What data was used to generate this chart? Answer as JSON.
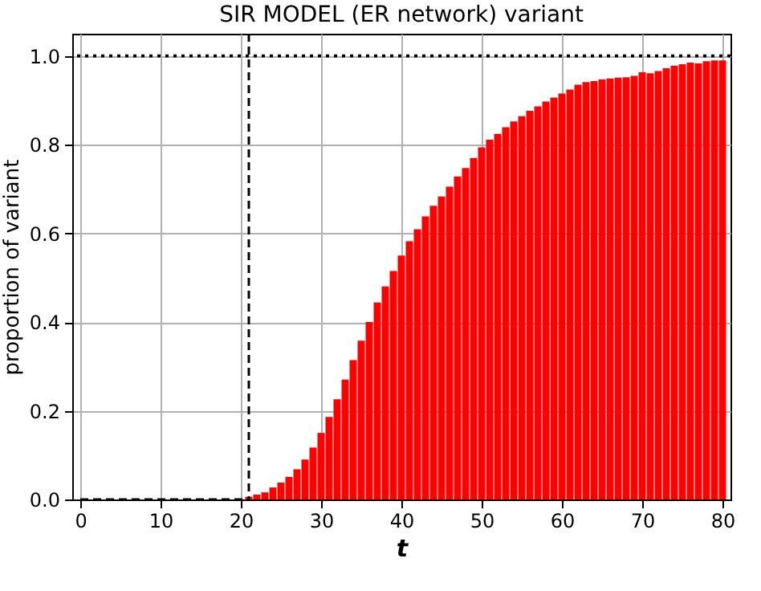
{
  "chart_data": {
    "type": "bar",
    "title": "SIR MODEL (ER network) variant",
    "xlabel": "t",
    "ylabel": "proportion of variant",
    "series": [
      {
        "color": "#ff0000",
        "x": [
          21,
          22,
          23,
          24,
          25,
          26,
          27,
          28,
          29,
          30,
          31,
          32,
          33,
          34,
          35,
          36,
          37,
          38,
          39,
          40,
          41,
          42,
          43,
          44,
          45,
          46,
          47,
          48,
          49,
          50,
          51,
          52,
          53,
          54,
          55,
          56,
          57,
          58,
          59,
          60,
          61,
          62,
          63,
          64,
          65,
          66,
          67,
          68,
          69,
          70,
          71,
          72,
          73,
          74,
          75,
          76,
          77,
          78,
          79,
          80
        ],
        "values": [
          0.006,
          0.011,
          0.016,
          0.027,
          0.038,
          0.051,
          0.068,
          0.09,
          0.117,
          0.15,
          0.186,
          0.226,
          0.27,
          0.314,
          0.358,
          0.4,
          0.444,
          0.48,
          0.515,
          0.55,
          0.582,
          0.609,
          0.638,
          0.662,
          0.683,
          0.705,
          0.728,
          0.747,
          0.77,
          0.794,
          0.811,
          0.824,
          0.839,
          0.852,
          0.864,
          0.876,
          0.886,
          0.897,
          0.906,
          0.915,
          0.924,
          0.935,
          0.941,
          0.943,
          0.947,
          0.949,
          0.951,
          0.952,
          0.955,
          0.963,
          0.961,
          0.966,
          0.972,
          0.978,
          0.981,
          0.985,
          0.983,
          0.988,
          0.99,
          0.99
        ]
      },
      {
        "type": "line",
        "color": "#000000",
        "line_style": "dashed",
        "x": [
          0,
          21
        ],
        "values": [
          0,
          0
        ]
      }
    ],
    "ref_lines": [
      {
        "axis": "x",
        "value": 21,
        "line_style": "dashed",
        "color": "#000000"
      },
      {
        "axis": "y",
        "value": 1.0,
        "line_style": "dotted",
        "color": "#000000"
      }
    ],
    "xlim": [
      0,
      80
    ],
    "xticks": [
      0,
      10,
      20,
      30,
      40,
      50,
      60,
      70,
      80
    ],
    "ylim": [
      0,
      1.05
    ],
    "yticks": [
      {
        "value": 0,
        "label": "0.0"
      },
      {
        "value": 0.2,
        "label": "0.2"
      },
      {
        "value": 0.4,
        "label": "0.4"
      },
      {
        "value": 0.6,
        "label": "0.6"
      },
      {
        "value": 0.8,
        "label": "0.8"
      },
      {
        "value": 1.0,
        "label": "1.0"
      }
    ],
    "grid": true
  }
}
